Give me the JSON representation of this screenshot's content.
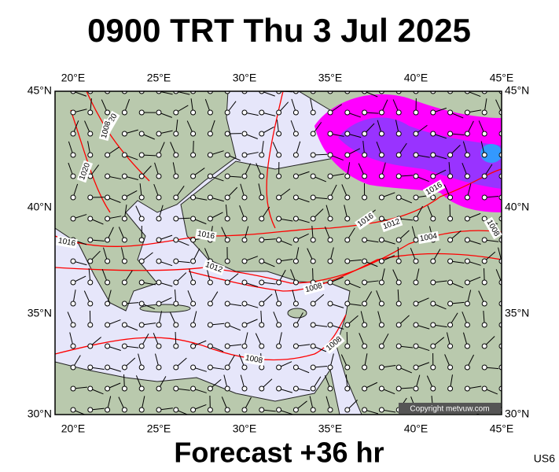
{
  "header": {
    "title": "0900 TRT Thu 3 Jul 2025"
  },
  "footer": {
    "subtitle": "Forecast +36 hr",
    "code": "US6"
  },
  "map": {
    "lon_labels": [
      "20°E",
      "25°E",
      "30°E",
      "35°E",
      "40°E",
      "45°E"
    ],
    "lat_labels": [
      "45°N",
      "40°N",
      "35°N",
      "30°N"
    ],
    "isobar_labels": [
      "1020",
      "1008",
      "1020",
      "1016",
      "1016",
      "1012",
      "1008",
      "1008",
      "1008",
      "1016",
      "1012",
      "1004",
      "1016",
      "1008"
    ],
    "copyright": "Copyright metvuw.com"
  }
}
